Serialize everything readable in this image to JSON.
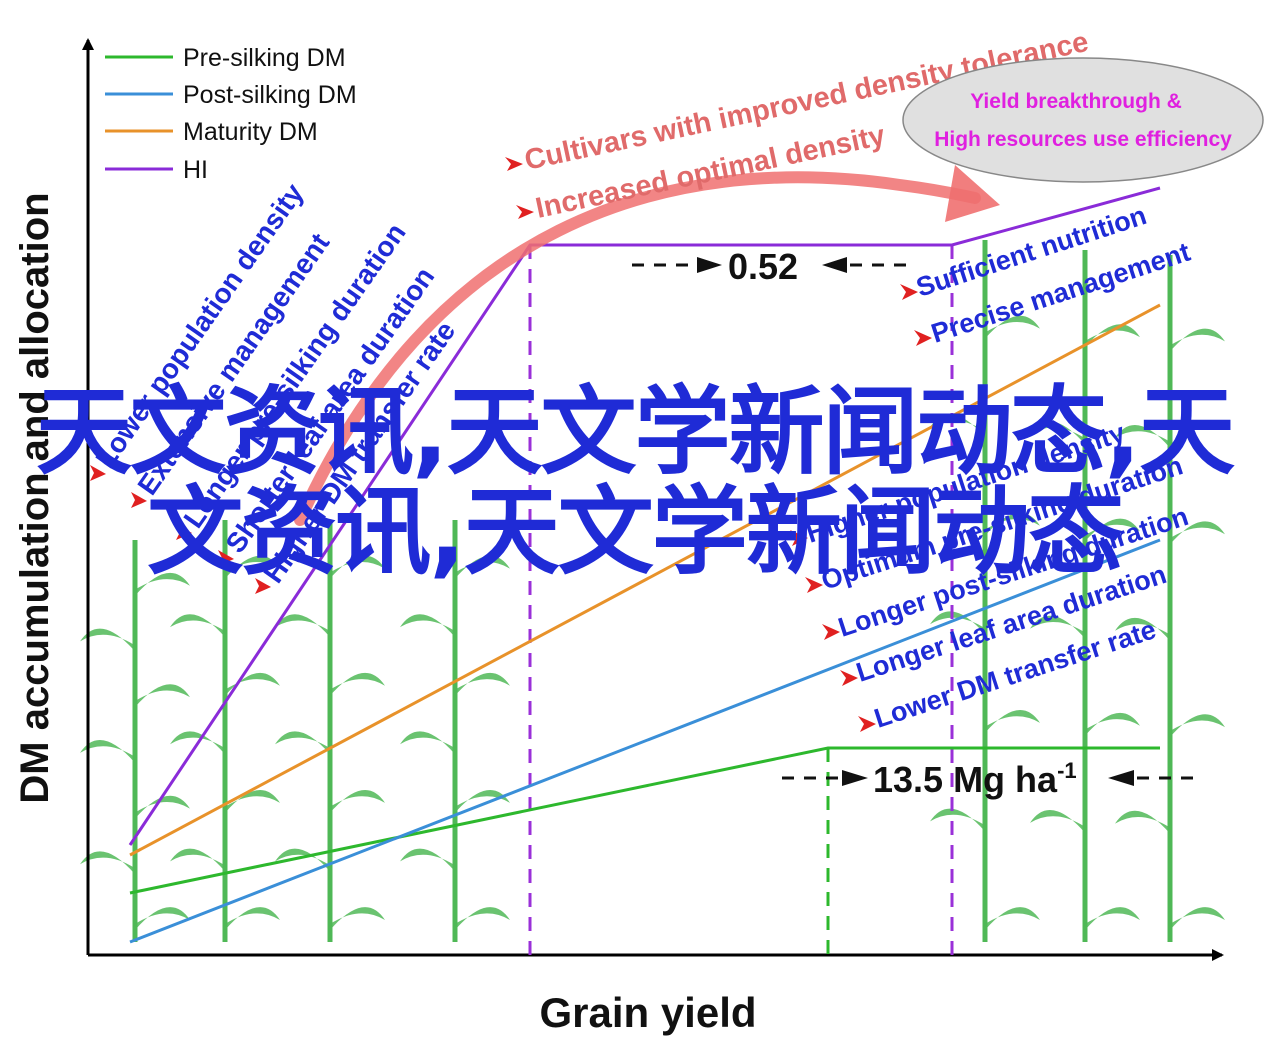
{
  "legend": [
    {
      "label": "Pre-silking DM",
      "color": "#2db82d"
    },
    {
      "label": "Post-silking DM",
      "color": "#3a8fd8"
    },
    {
      "label": "Maturity DM",
      "color": "#e8922a"
    },
    {
      "label": "HI",
      "color": "#8a2bd8"
    }
  ],
  "axes": {
    "ylabel": "DM accumulation and allocation",
    "xlabel": "Grain yield"
  },
  "arrow_labels": [
    "Cultivars with improved density tolerance",
    "Increased optimal density"
  ],
  "ellipse_text": [
    "Yield breakthrough &",
    "High resources use efficiency"
  ],
  "hi_gap": "0.52",
  "yield_gap": {
    "value": "13.5 Mg ha",
    "sup": "-1"
  },
  "left_factors": [
    "Lower population density",
    "Extensive management",
    "Longer pre-silking duration",
    "Shorter leaf area duration",
    "Higher DM transfer rate"
  ],
  "right_top_factors": [
    "Sufficient nutrition",
    "Precise management"
  ],
  "right_bottom_factors": [
    "Higher population density",
    "Optimum pre-silking duration",
    "Longer post-silking duration",
    "Longer leaf area duration",
    "Lower DM transfer rate"
  ],
  "overlay_text": "天文资讯,天文学新闻动态,天文资讯,天文学新闻动态",
  "colors": {
    "factor_text": "#1f2bd6",
    "arrow": "#f07070",
    "arrow_text": "#e06a6a",
    "ellipse_text": "#e020e0",
    "ellipse_fill": "#e0e0e0",
    "bullet": "#e02020",
    "plant": "#3cb043"
  }
}
